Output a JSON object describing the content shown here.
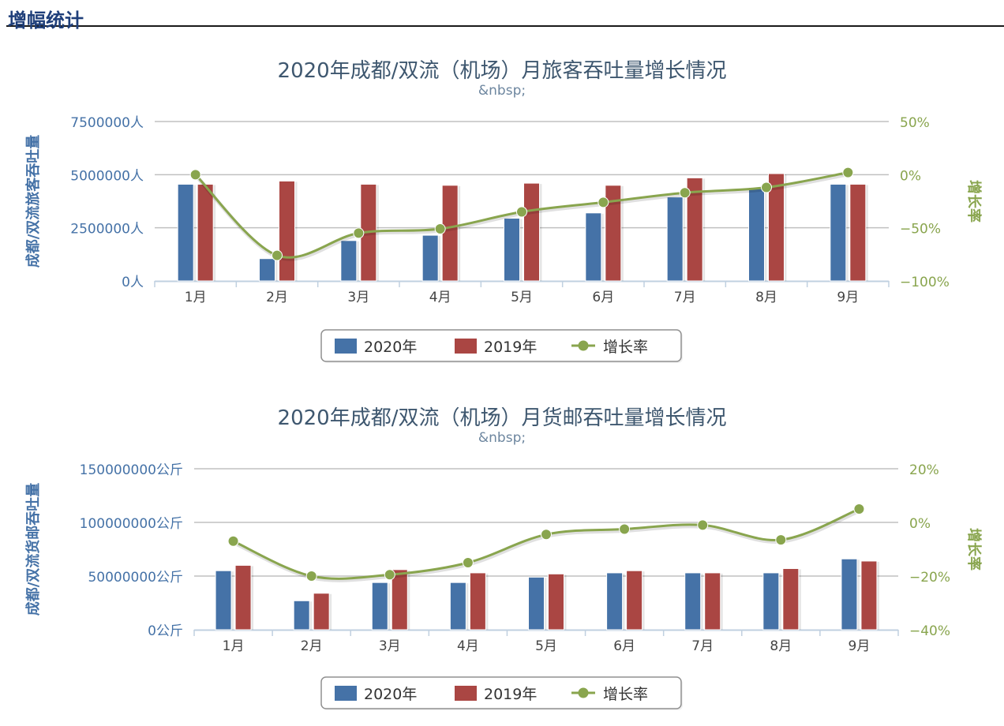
{
  "page": {
    "header_title": "增幅统计"
  },
  "chart_data": [
    {
      "type": "bar",
      "title": "2020年成都/双流（机场）月旅客吞吐量增长情况",
      "subtitle": "&nbsp;",
      "ylabel": "成都/双流旅客吞吐量",
      "y2label": "增长率",
      "categories": [
        "1月",
        "2月",
        "3月",
        "4月",
        "5月",
        "6月",
        "7月",
        "8月",
        "9月"
      ],
      "ylim": [
        0,
        7500000
      ],
      "yticks": [
        0,
        2500000,
        5000000,
        7500000
      ],
      "ytick_labels": [
        "0人",
        "2500000人",
        "5000000人",
        "7500000人"
      ],
      "y2lim": [
        -100,
        50
      ],
      "y2ticks": [
        -100,
        -50,
        0,
        50
      ],
      "y2tick_labels": [
        "−100%",
        "−50%",
        "0%",
        "50%"
      ],
      "series": [
        {
          "name": "2020年",
          "type": "bar",
          "color": "#4572a7",
          "values": [
            4550000,
            1050000,
            1900000,
            2150000,
            2950000,
            3200000,
            3950000,
            4400000,
            4550000
          ]
        },
        {
          "name": "2019年",
          "type": "bar",
          "color": "#aa4643",
          "values": [
            4550000,
            4700000,
            4550000,
            4500000,
            4600000,
            4500000,
            4850000,
            5050000,
            4550000
          ]
        },
        {
          "name": "增长率",
          "type": "line",
          "color": "#89a54e",
          "axis": "right",
          "values": [
            0,
            -76,
            -55,
            -51,
            -35,
            -26,
            -17,
            -12,
            2
          ]
        }
      ],
      "legend": [
        "2020年",
        "2019年",
        "增长率"
      ],
      "legend_position": "bottom-center",
      "grid": true
    },
    {
      "type": "bar",
      "title": "2020年成都/双流（机场）月货邮吞吐量增长情况",
      "subtitle": "&nbsp;",
      "ylabel": "成都/双流货邮吞吐量",
      "y2label": "增长率",
      "categories": [
        "1月",
        "2月",
        "3月",
        "4月",
        "5月",
        "6月",
        "7月",
        "8月",
        "9月"
      ],
      "ylim": [
        0,
        150000000
      ],
      "yticks": [
        0,
        50000000,
        100000000,
        150000000
      ],
      "ytick_labels": [
        "0公斤",
        "50000000公斤",
        "100000000公斤",
        "150000000公斤"
      ],
      "y2lim": [
        -40,
        20
      ],
      "y2ticks": [
        -40,
        -20,
        0,
        20
      ],
      "y2tick_labels": [
        "−40%",
        "−20%",
        "0%",
        "20%"
      ],
      "series": [
        {
          "name": "2020年",
          "type": "bar",
          "color": "#4572a7",
          "values": [
            55000000,
            27000000,
            44000000,
            44000000,
            49000000,
            53000000,
            53000000,
            53000000,
            66000000
          ]
        },
        {
          "name": "2019年",
          "type": "bar",
          "color": "#aa4643",
          "values": [
            60000000,
            34000000,
            56000000,
            53000000,
            52000000,
            55000000,
            53000000,
            57000000,
            64000000
          ]
        },
        {
          "name": "增长率",
          "type": "line",
          "color": "#89a54e",
          "axis": "right",
          "values": [
            -7,
            -20,
            -19.5,
            -15,
            -4.5,
            -2.5,
            -1,
            -6.5,
            5
          ]
        }
      ],
      "legend": [
        "2020年",
        "2019年",
        "增长率"
      ],
      "legend_position": "bottom-center",
      "grid": true
    }
  ]
}
